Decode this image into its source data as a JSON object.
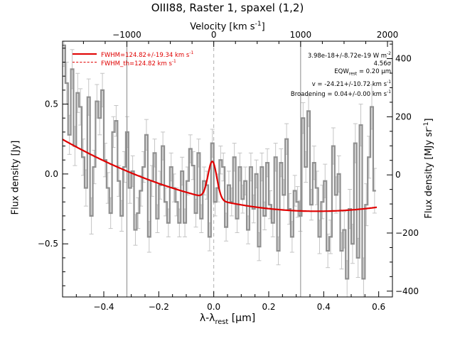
{
  "chart_data": {
    "type": "line",
    "title": "OIII88, Raster 1, spaxel (1,2)",
    "xlabel": "λ-λ",
    "xlabel_sub": "rest",
    "xlabel_unit": "[μm]",
    "ylabel": "Flux density [Jy]",
    "ylabel_right": "Flux density [MJy sr",
    "ylabel_right_sup": "-1",
    "top_axis_label": "Velocity [km s",
    "top_axis_label_sup": "-1",
    "xlim": [
      -0.55,
      0.65
    ],
    "ylim": [
      -0.88,
      0.95
    ],
    "right_ylim": [
      -420,
      460
    ],
    "xticks": [
      -0.4,
      -0.2,
      0.0,
      0.2,
      0.4,
      0.6
    ],
    "xtick_labels": [
      "−0.4",
      "−0.2",
      "0.0",
      "0.2",
      "0.4",
      "0.6"
    ],
    "yticks": [
      -0.5,
      0.0,
      0.5
    ],
    "ytick_labels": [
      "−0.5",
      "0.0",
      "0.5"
    ],
    "right_yticks": [
      -400,
      -200,
      0,
      200,
      400
    ],
    "right_ytick_labels": [
      "−400",
      "−200",
      "0",
      "200",
      "400"
    ],
    "top_ticks_x": [
      -0.316,
      0.0,
      0.316,
      0.632
    ],
    "top_tick_labels": [
      "−1000",
      "0",
      "1000",
      "2000"
    ],
    "vlines_solid": [
      -0.316,
      0.316
    ],
    "vline_dashed": 0.0,
    "data_color": "#909090",
    "errorbar_color": "#c4c4c4",
    "fit_color": "#e00000",
    "series": [
      {
        "name": "data",
        "x": [
          -0.545,
          -0.535,
          -0.525,
          -0.515,
          -0.505,
          -0.495,
          -0.485,
          -0.475,
          -0.465,
          -0.455,
          -0.445,
          -0.435,
          -0.425,
          -0.415,
          -0.405,
          -0.395,
          -0.385,
          -0.375,
          -0.365,
          -0.355,
          -0.345,
          -0.335,
          -0.325,
          -0.315,
          -0.305,
          -0.295,
          -0.285,
          -0.275,
          -0.265,
          -0.255,
          -0.245,
          -0.235,
          -0.225,
          -0.215,
          -0.205,
          -0.195,
          -0.185,
          -0.175,
          -0.165,
          -0.155,
          -0.145,
          -0.135,
          -0.125,
          -0.115,
          -0.105,
          -0.095,
          -0.085,
          -0.075,
          -0.065,
          -0.055,
          -0.045,
          -0.035,
          -0.025,
          -0.015,
          -0.005,
          0.005,
          0.015,
          0.025,
          0.035,
          0.045,
          0.055,
          0.065,
          0.075,
          0.085,
          0.095,
          0.105,
          0.115,
          0.125,
          0.135,
          0.145,
          0.155,
          0.165,
          0.175,
          0.185,
          0.195,
          0.205,
          0.215,
          0.225,
          0.235,
          0.245,
          0.255,
          0.265,
          0.275,
          0.285,
          0.295,
          0.305,
          0.315,
          0.325,
          0.335,
          0.345,
          0.355,
          0.365,
          0.375,
          0.385,
          0.395,
          0.405,
          0.415,
          0.425,
          0.435,
          0.445,
          0.455,
          0.465,
          0.475,
          0.485,
          0.495,
          0.505,
          0.515,
          0.525,
          0.535,
          0.545,
          0.555,
          0.565,
          0.575,
          0.585
        ],
        "y": [
          0.92,
          0.65,
          0.28,
          0.75,
          0.2,
          0.58,
          0.48,
          0.12,
          -0.1,
          0.55,
          -0.3,
          0.05,
          0.52,
          0.4,
          0.6,
          0.1,
          -0.1,
          -0.28,
          0.3,
          0.38,
          -0.05,
          -0.3,
          0.05,
          0.3,
          -0.1,
          0.02,
          -0.4,
          -0.28,
          -0.12,
          0.05,
          0.28,
          -0.45,
          -0.05,
          0.15,
          -0.32,
          -0.08,
          0.2,
          -0.2,
          -0.35,
          0.05,
          -0.1,
          -0.2,
          -0.35,
          0.02,
          -0.35,
          -0.05,
          0.18,
          0.06,
          -0.28,
          0.15,
          -0.32,
          -0.05,
          -0.08,
          -0.45,
          0.22,
          -0.2,
          -0.1,
          0.1,
          0.05,
          -0.38,
          -0.08,
          -0.2,
          0.12,
          -0.32,
          0.05,
          -0.18,
          -0.05,
          -0.4,
          0.05,
          -0.25,
          0.0,
          -0.52,
          0.05,
          -0.3,
          0.08,
          -0.22,
          -0.35,
          0.12,
          -0.55,
          0.08,
          -0.15,
          0.25,
          -0.25,
          -0.45,
          -0.12,
          -0.2,
          -0.3,
          0.4,
          0.05,
          0.45,
          -0.22,
          0.08,
          -0.1,
          -0.45,
          -0.2,
          -0.05,
          -0.55,
          -0.45,
          0.2,
          -0.15,
          0.0,
          -0.55,
          -0.4,
          -0.75,
          -0.25,
          -0.5,
          0.22,
          -0.6,
          0.35,
          -0.75,
          -0.22,
          0.12,
          0.48,
          -0.12
        ],
        "yerr": [
          0.15,
          0.15,
          0.14,
          0.14,
          0.14,
          0.14,
          0.13,
          0.13,
          0.13,
          0.13,
          0.13,
          0.12,
          0.12,
          0.12,
          0.12,
          0.12,
          0.11,
          0.11,
          0.11,
          0.11,
          0.11,
          0.11,
          0.11,
          0.11,
          0.11,
          0.11,
          0.11,
          0.11,
          0.11,
          0.11,
          0.11,
          0.11,
          0.11,
          0.1,
          0.1,
          0.1,
          0.1,
          0.1,
          0.1,
          0.1,
          0.1,
          0.1,
          0.1,
          0.1,
          0.1,
          0.1,
          0.1,
          0.1,
          0.1,
          0.1,
          0.1,
          0.1,
          0.1,
          0.1,
          0.1,
          0.1,
          0.1,
          0.1,
          0.1,
          0.1,
          0.1,
          0.1,
          0.1,
          0.1,
          0.1,
          0.1,
          0.1,
          0.1,
          0.1,
          0.1,
          0.1,
          0.1,
          0.1,
          0.1,
          0.1,
          0.1,
          0.1,
          0.1,
          0.1,
          0.1,
          0.11,
          0.11,
          0.11,
          0.11,
          0.11,
          0.11,
          0.11,
          0.11,
          0.11,
          0.11,
          0.11,
          0.12,
          0.12,
          0.12,
          0.12,
          0.12,
          0.12,
          0.12,
          0.13,
          0.13,
          0.13,
          0.13,
          0.13,
          0.13,
          0.14,
          0.14,
          0.14,
          0.14,
          0.15,
          0.15,
          0.15,
          0.15,
          0.16,
          0.16
        ]
      },
      {
        "name": "FWHM=124.82+/-19.34 km s",
        "name_sup": "-1",
        "style": "solid",
        "fit_params": {
          "c0": -0.182,
          "c1": -0.178,
          "c2": -0.02,
          "c3": 1.0,
          "amp": 0.27,
          "center": -0.005,
          "sigma": 0.016
        }
      },
      {
        "name": "FWHM_th=124.82 km s",
        "name_sup": "-1",
        "style": "dashed"
      }
    ],
    "annotations": [
      {
        "text": "3.98e-18+/-8.72e-19 W m",
        "sup": "-2"
      },
      {
        "text": "4.56σ",
        "sup": ""
      },
      {
        "text": "EQW",
        "sub": "rest",
        "text2": " = 0.20 μm",
        "sup": ""
      },
      {
        "text": "v = -24.21+/-10.72 km s",
        "sup": "-1"
      },
      {
        "text": "Broadening = 0.04+/-0.00 km s",
        "sup": "-1"
      }
    ]
  }
}
